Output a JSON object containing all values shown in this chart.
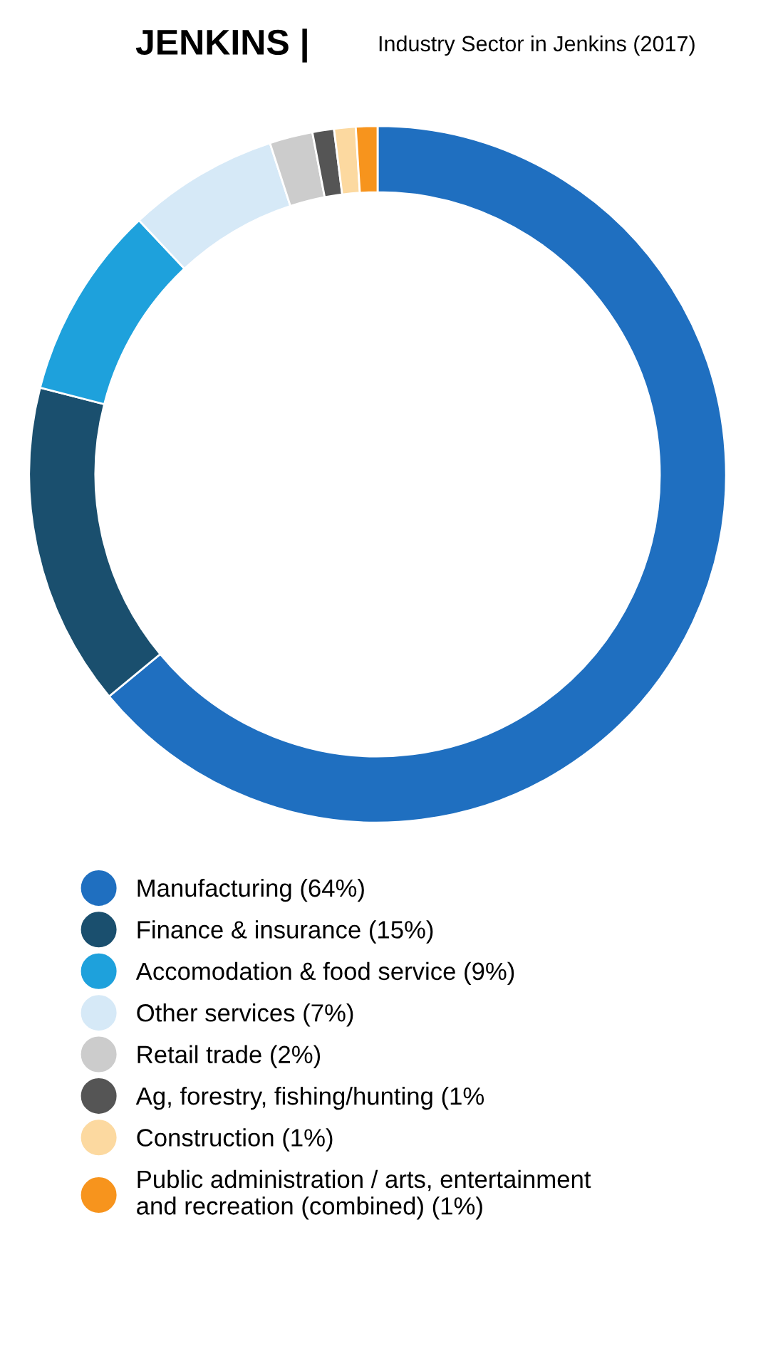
{
  "chart_data": {
    "type": "donut",
    "title": "JENKINS |",
    "subtitle": "Industry Sector in Jenkins (2017)",
    "categories": [
      "Manufacturing (64%)",
      "Finance & insurance (15%)",
      "Accomodation & food service (9%)",
      "Other services (7%)",
      "Retail trade (2%)",
      "Ag, forestry, fishing/hunting (1%",
      "Construction (1%)",
      "Public administration / arts, entertainment\nand recreation (combined) (1%)"
    ],
    "values": [
      64,
      15,
      9,
      7,
      2,
      1,
      1,
      1
    ],
    "colors": [
      "#1f6fc0",
      "#1a4f6e",
      "#1ea1dc",
      "#d6e9f7",
      "#cccccc",
      "#555555",
      "#fcd9a0",
      "#f7941d"
    ],
    "legend": "bottom"
  }
}
